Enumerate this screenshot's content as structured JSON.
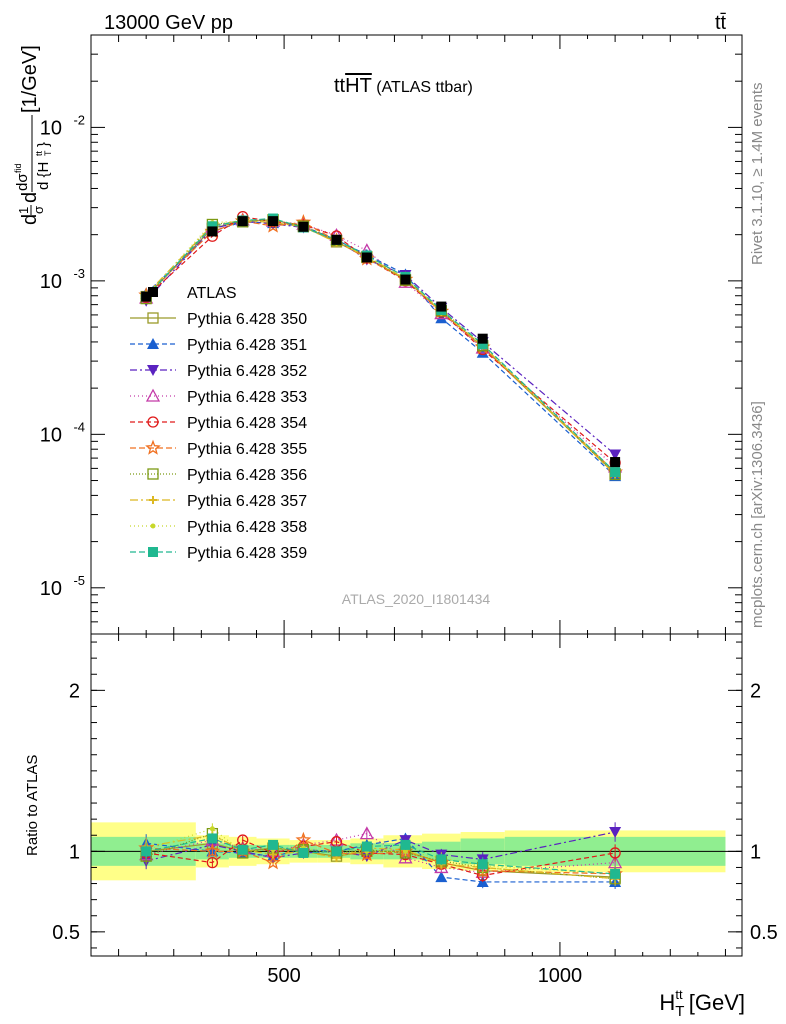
{
  "header": {
    "left": "13000 GeV pp",
    "right": "tt̄"
  },
  "side_text": {
    "rivet": "Rivet 3.1.10, ≥ 1.4M events",
    "mcplots": "mcplots.cern.ch [arXiv:1306.3436]"
  },
  "chart_data": [
    {
      "type": "line",
      "title": "ttHT (ATLAS ttbar)",
      "analysis_id": "ATLAS_2020_I1801434",
      "ylabel": "dσ/d{H_T^tt} [1/GeV] (normalized)",
      "yscale": "log",
      "ylim": [
        5e-06,
        0.04
      ],
      "xlim": [
        150,
        1330
      ],
      "grid": false,
      "legend_position": "left",
      "x": [
        250,
        370,
        425,
        480,
        535,
        595,
        650,
        720,
        785,
        860,
        1100
      ],
      "data_bins": [
        [
          150,
          340
        ],
        [
          340,
          400
        ],
        [
          400,
          450
        ],
        [
          450,
          510
        ],
        [
          510,
          560
        ],
        [
          560,
          620
        ],
        [
          620,
          680
        ],
        [
          680,
          750
        ],
        [
          750,
          820
        ],
        [
          820,
          900
        ],
        [
          900,
          1300
        ]
      ],
      "data": {
        "name": "ATLAS",
        "values": [
          0.00079,
          0.0021,
          0.00245,
          0.00245,
          0.00225,
          0.00185,
          0.00142,
          0.00102,
          0.00068,
          0.00042,
          6.6e-05
        ],
        "rel_err_stat": [
          0.09,
          0.05,
          0.04,
          0.04,
          0.04,
          0.04,
          0.05,
          0.05,
          0.06,
          0.08,
          0.09
        ],
        "rel_err_total": [
          0.18,
          0.1,
          0.09,
          0.08,
          0.07,
          0.07,
          0.08,
          0.1,
          0.11,
          0.12,
          0.13
        ]
      },
      "series": [
        {
          "name": "Pythia 6.428 350",
          "color": "#9a9a2a",
          "marker": "square-open",
          "dash": "",
          "ratio": [
            1.0,
            1.05,
            1.0,
            1.02,
            1.0,
            0.97,
            1.0,
            1.0,
            0.93,
            0.88,
            0.84
          ]
        },
        {
          "name": "Pythia 6.428 351",
          "color": "#1a5fd0",
          "marker": "triangle-up",
          "dash": "5,3",
          "ratio": [
            1.05,
            1.0,
            0.99,
            0.97,
            1.01,
            1.0,
            1.04,
            1.08,
            0.84,
            0.81,
            0.81
          ]
        },
        {
          "name": "Pythia 6.428 352",
          "color": "#5a22c0",
          "marker": "triangle-down",
          "dash": "7,3,2,3",
          "ratio": [
            0.94,
            1.04,
            1.0,
            0.96,
            0.99,
            1.0,
            0.97,
            1.07,
            0.98,
            0.95,
            1.12
          ]
        },
        {
          "name": "Pythia 6.428 353",
          "color": "#c43aa8",
          "marker": "triangle-up-open",
          "dash": "1,3",
          "ratio": [
            0.98,
            1.07,
            1.02,
            1.0,
            1.04,
            1.07,
            1.11,
            0.96,
            0.9,
            0.87,
            0.93
          ]
        },
        {
          "name": "Pythia 6.428 354",
          "color": "#e01a1a",
          "marker": "circle-open",
          "dash": "5,3",
          "ratio": [
            0.99,
            0.93,
            1.07,
            0.99,
            1.03,
            1.06,
            0.99,
            0.98,
            0.92,
            0.85,
            0.99
          ]
        },
        {
          "name": "Pythia 6.428 355",
          "color": "#f07020",
          "marker": "star-open",
          "dash": "6,3",
          "ratio": [
            1.02,
            1.0,
            1.0,
            0.93,
            1.07,
            0.99,
            0.98,
            1.0,
            0.93,
            0.88,
            0.86
          ]
        },
        {
          "name": "Pythia 6.428 356",
          "color": "#7c9a14",
          "marker": "square-open",
          "dash": "1,2",
          "ratio": [
            0.97,
            1.11,
            0.99,
            1.02,
            1.01,
            0.99,
            1.01,
            0.99,
            0.94,
            0.9,
            0.83
          ]
        },
        {
          "name": "Pythia 6.428 357",
          "color": "#dcb822",
          "marker": "cross",
          "dash": "8,3,2,3",
          "ratio": [
            1.03,
            1.1,
            1.01,
            0.98,
            1.0,
            0.96,
            1.02,
            1.01,
            0.92,
            0.9,
            0.83
          ]
        },
        {
          "name": "Pythia 6.428 358",
          "color": "#c8d82a",
          "marker": "dot",
          "dash": "1,3",
          "ratio": [
            1.01,
            1.14,
            1.0,
            1.01,
            1.02,
            0.99,
            1.0,
            1.0,
            0.96,
            0.91,
            0.86
          ]
        },
        {
          "name": "Pythia 6.428 359",
          "color": "#20b890",
          "marker": "square",
          "dash": "6,3",
          "ratio": [
            1.0,
            1.08,
            1.01,
            1.04,
            0.99,
            1.0,
            1.03,
            1.04,
            0.95,
            0.92,
            0.86
          ]
        }
      ]
    },
    {
      "type": "line",
      "ylabel": "Ratio to ATLAS",
      "xlabel": "H_T^tt [GeV]",
      "yscale": "linear",
      "ylim": [
        0.35,
        2.35
      ],
      "reference_line": 1.0
    }
  ],
  "axis_labels": {
    "x_title": "H",
    "x_sub": "T",
    "x_sup": "tt",
    "x_unit": " [GeV]",
    "x_ticks": [
      "500",
      "1000"
    ],
    "y_main_ticks": [
      "10^-2",
      "10^-3",
      "10^-4",
      "10^-5"
    ],
    "y_ratio_ticks": [
      "2",
      "1",
      "0.5"
    ],
    "ratio_ylabel": "Ratio to ATLAS",
    "title_main": "tt",
    "title_over": "HT",
    "title_suffix": " (ATLAS ttbar)"
  },
  "legend_title": "ATLAS"
}
